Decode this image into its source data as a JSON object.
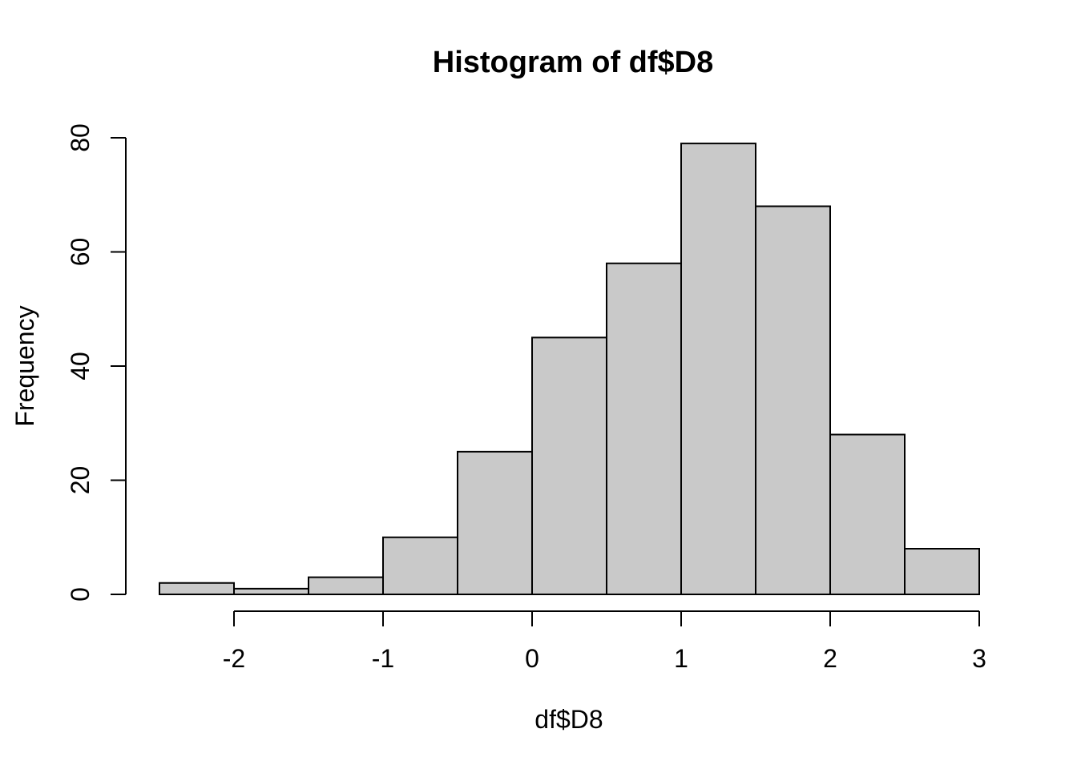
{
  "chart_data": {
    "type": "bar",
    "variant": "histogram",
    "title": "Histogram of df$D8",
    "xlabel": "df$D8",
    "ylabel": "Frequency",
    "bin_edges": [
      -2.5,
      -2.0,
      -1.5,
      -1.0,
      -0.5,
      0.0,
      0.5,
      1.0,
      1.5,
      2.0,
      2.5,
      3.0
    ],
    "values": [
      2,
      1,
      3,
      10,
      25,
      45,
      58,
      79,
      68,
      28,
      8
    ],
    "x_ticks": [
      -2,
      -1,
      0,
      1,
      2,
      3
    ],
    "x_tick_labels": [
      "-2",
      "-1",
      "0",
      "1",
      "2",
      "3"
    ],
    "y_ticks": [
      0,
      20,
      40,
      60,
      80
    ],
    "y_tick_labels": [
      "0",
      "20",
      "40",
      "60",
      "80"
    ],
    "xlim": [
      -2.5,
      3.0
    ],
    "ylim": [
      0,
      80
    ],
    "grid": false,
    "legend_position": "none"
  },
  "style": {
    "background": "#FFFFFF",
    "bar_fill": "#C9C9C9",
    "bar_stroke": "#000000",
    "axis_color": "#000000",
    "text_color": "#000000"
  }
}
